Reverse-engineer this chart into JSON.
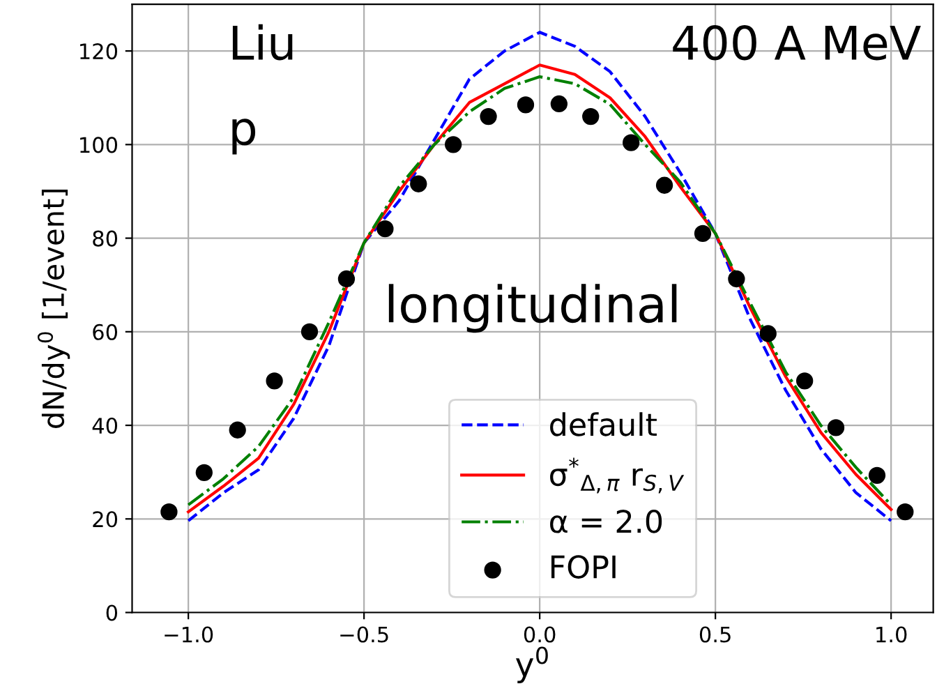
{
  "chart_data": {
    "type": "line",
    "xlabel": "y$^{0}$",
    "ylabel": "dN/dy$^{0}$ [1/event]",
    "annotations": [
      "Liu",
      "p",
      "400 A MeV",
      "longitudinal"
    ],
    "xlim": [
      -1.16,
      1.12
    ],
    "ylim": [
      0,
      130
    ],
    "xticks": [
      {
        "value": -1.0,
        "label": "−1.0"
      },
      {
        "value": -0.5,
        "label": "−0.5"
      },
      {
        "value": 0.0,
        "label": "0.0"
      },
      {
        "value": 0.5,
        "label": "0.5"
      },
      {
        "value": 1.0,
        "label": "1.0"
      }
    ],
    "yticks": [
      0,
      20,
      40,
      60,
      80,
      100,
      120
    ],
    "grid": true,
    "legend": "bottom",
    "x": [
      -1.0,
      -0.9,
      -0.8,
      -0.7,
      -0.6,
      -0.5,
      -0.4,
      -0.3,
      -0.2,
      -0.1,
      0.0,
      0.1,
      0.2,
      0.3,
      0.4,
      0.5,
      0.6,
      0.7,
      0.8,
      0.9,
      1.0
    ],
    "series": [
      {
        "name": "default",
        "color": "#0000ff",
        "line_style": "dashed",
        "values": [
          19.6,
          25.6,
          30.5,
          41.5,
          57,
          79,
          88,
          101,
          114,
          120,
          124,
          121,
          115.6,
          106,
          94,
          81,
          62.5,
          47.5,
          35,
          25.6,
          19.6
        ]
      },
      {
        "name": "σ$^{*}$$_{Δ,π}$ r$_{S,V}$",
        "color": "#ff0000",
        "line_style": "solid",
        "values": [
          21.5,
          27,
          33,
          44.5,
          60,
          79,
          90,
          100,
          109,
          113,
          117,
          115,
          110,
          101.7,
          91,
          81,
          65,
          50.4,
          38.5,
          29.5,
          22
        ]
      },
      {
        "name": "α = 2.0",
        "color": "#008000",
        "line_style": "dashdot",
        "values": [
          23,
          28.6,
          35.5,
          46,
          62,
          79,
          91,
          100,
          107,
          112,
          114.5,
          113,
          108.6,
          100,
          92,
          81,
          66,
          51.4,
          40,
          31,
          23
        ]
      },
      {
        "name": "FOPI",
        "type": "scatter",
        "color": "#000000",
        "marker": "circle",
        "x": [
          -1.055,
          -0.955,
          -0.86,
          -0.755,
          -0.655,
          -0.55,
          -0.44,
          -0.345,
          -0.246,
          -0.146,
          -0.04,
          0.055,
          0.145,
          0.26,
          0.355,
          0.464,
          0.56,
          0.65,
          0.754,
          0.843,
          0.96,
          1.04
        ],
        "values": [
          21.5,
          29.9,
          39,
          49.5,
          60,
          71.3,
          82,
          91.6,
          100,
          106,
          108.5,
          108.7,
          106,
          100.4,
          91.3,
          81,
          71.3,
          59.6,
          49.5,
          39.5,
          29.3,
          21.5
        ]
      }
    ]
  }
}
